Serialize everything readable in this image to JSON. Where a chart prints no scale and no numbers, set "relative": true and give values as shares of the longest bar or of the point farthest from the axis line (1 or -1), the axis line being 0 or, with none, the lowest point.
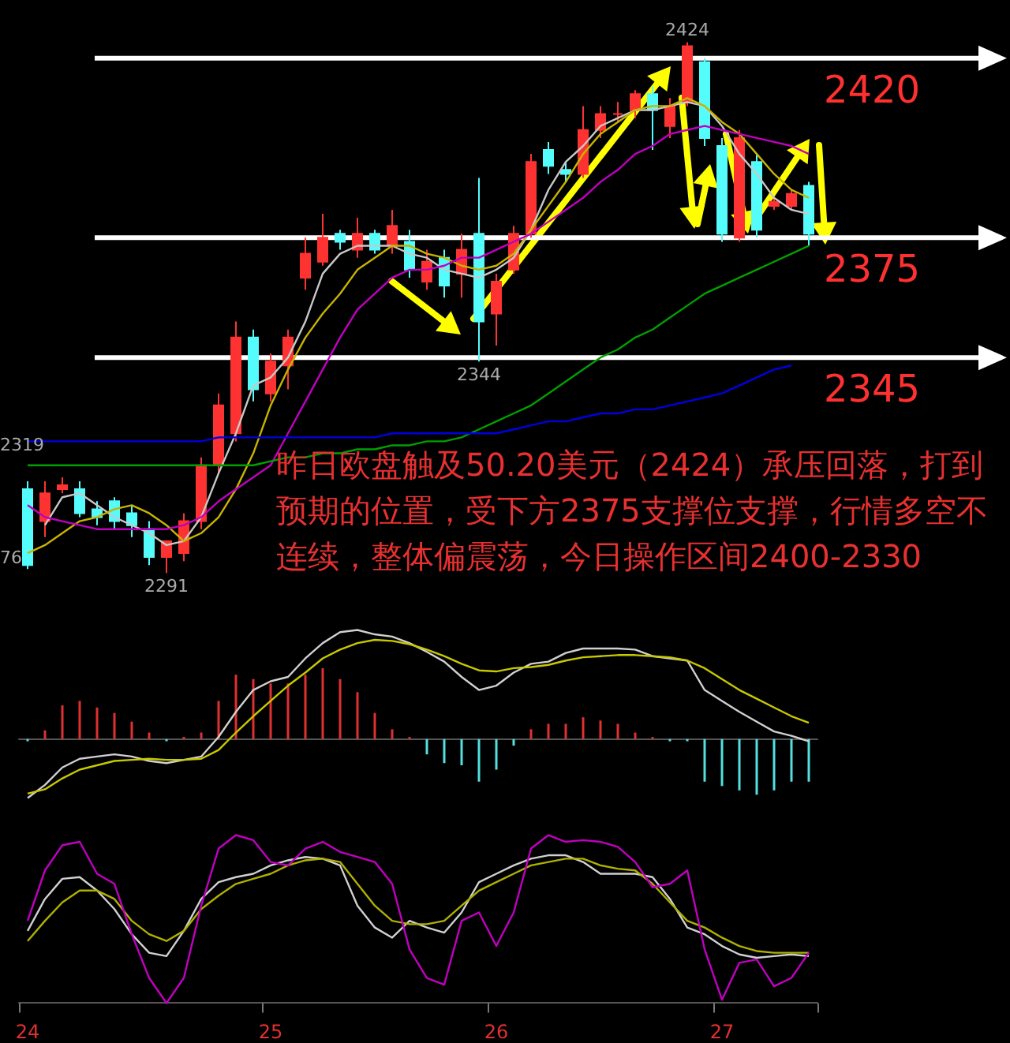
{
  "chart_data": [
    {
      "type": "candlestick",
      "tick_labels": false,
      "categories": [
        "24",
        null,
        null,
        null,
        null,
        null,
        null,
        null,
        null,
        null,
        null,
        null,
        null,
        null,
        "25",
        null,
        null,
        null,
        null,
        null,
        null,
        null,
        null,
        null,
        null,
        null,
        null,
        "26",
        null,
        null,
        null,
        null,
        null,
        null,
        null,
        null,
        null,
        null,
        null,
        null,
        "27",
        null,
        null,
        null,
        null,
        null
      ],
      "ohlc": [
        [
          2312,
          2314,
          2292,
          2293
        ],
        [
          2304,
          2314,
          2300,
          2311
        ],
        [
          2312,
          2315,
          2311,
          2313
        ],
        [
          2312,
          2314,
          2305,
          2306
        ],
        [
          2307,
          2309,
          2303,
          2305
        ],
        [
          2309,
          2310,
          2302,
          2304
        ],
        [
          2306,
          2308,
          2300,
          2303
        ],
        [
          2302,
          2304,
          2293,
          2295
        ],
        [
          2295,
          2299,
          2291,
          2299
        ],
        [
          2296,
          2306,
          2294,
          2304
        ],
        [
          2304,
          2320,
          2302,
          2318
        ],
        [
          2318,
          2336,
          2316,
          2333
        ],
        [
          2326,
          2354,
          2324,
          2350
        ],
        [
          2350,
          2352,
          2334,
          2337
        ],
        [
          2336,
          2346,
          2334,
          2344
        ],
        [
          2343,
          2352,
          2337,
          2350
        ],
        [
          2365,
          2375,
          2362,
          2371
        ],
        [
          2369,
          2381,
          2368,
          2375
        ],
        [
          2376,
          2377,
          2372,
          2374
        ],
        [
          2372,
          2380,
          2370,
          2376
        ],
        [
          2376,
          2377,
          2371,
          2372
        ],
        [
          2373,
          2382,
          2371,
          2378
        ],
        [
          2374,
          2377,
          2365,
          2367
        ],
        [
          2364,
          2372,
          2362,
          2369
        ],
        [
          2370,
          2372,
          2360,
          2363
        ],
        [
          2366,
          2376,
          2360,
          2372
        ],
        [
          2376,
          2390,
          2344,
          2354
        ],
        [
          2356,
          2366,
          2348,
          2364
        ],
        [
          2367,
          2378,
          2366,
          2376
        ],
        [
          2376,
          2396,
          2375,
          2394
        ],
        [
          2397,
          2399,
          2391,
          2393
        ],
        [
          2392,
          2394,
          2389,
          2391
        ],
        [
          2391,
          2408,
          2390,
          2402
        ],
        [
          2402,
          2408,
          2400,
          2406
        ],
        [
          2406,
          2409,
          2404,
          2406
        ],
        [
          2407,
          2412,
          2405,
          2411
        ],
        [
          2411,
          2413,
          2397,
          2407
        ],
        [
          2403,
          2410,
          2400,
          2408
        ],
        [
          2409,
          2424,
          2408,
          2423
        ],
        [
          2419,
          2420,
          2398,
          2400
        ],
        [
          2398,
          2400,
          2374,
          2376
        ],
        [
          2375,
          2402,
          2374,
          2400
        ],
        [
          2394,
          2396,
          2375,
          2377
        ],
        [
          2383,
          2385,
          2382,
          2384
        ],
        [
          2383,
          2387,
          2382,
          2386
        ],
        [
          2388,
          2389,
          2373,
          2376
        ]
      ],
      "colors": [
        "#54fcfc",
        "#ff3232",
        "#ff3232",
        "#54fcfc",
        "#54fcfc",
        "#54fcfc",
        "#54fcfc",
        "#54fcfc",
        "#ff3232",
        "#ff3232",
        "#ff3232",
        "#ff3232",
        "#ff3232",
        "#54fcfc",
        "#ff3232",
        "#ff3232",
        "#ff3232",
        "#ff3232",
        "#54fcfc",
        "#ff3232",
        "#54fcfc",
        "#ff3232",
        "#54fcfc",
        "#ff3232",
        "#54fcfc",
        "#ff3232",
        "#54fcfc",
        "#ff3232",
        "#ff3232",
        "#ff3232",
        "#54fcfc",
        "#54fcfc",
        "#ff3232",
        "#ff3232",
        "#ff3232",
        "#ff3232",
        "#54fcfc",
        "#ff3232",
        "#ff3232",
        "#54fcfc",
        "#54fcfc",
        "#ff3232",
        "#54fcfc",
        "#ff3232",
        "#ff3232",
        "#54fcfc"
      ],
      "series": [
        {
          "type": "line",
          "color": "#c8c8c8",
          "values": [
            null,
            2303,
            2310,
            2311,
            2308,
            2305,
            2303,
            2301,
            2298,
            2299,
            2305,
            2316,
            2326,
            2338,
            2340,
            2345,
            2354,
            2366,
            2371,
            2373,
            2373,
            2373,
            2371,
            2370,
            2367,
            2366,
            2365,
            2367,
            2370,
            2377,
            2387,
            2394,
            2398,
            2403,
            2405,
            2407,
            2407,
            2408,
            2409,
            2408,
            2403,
            2396,
            2391,
            2385,
            2382,
            2381
          ]
        },
        {
          "type": "line",
          "color": "#c8b400",
          "values": [
            2296,
            2298,
            2301,
            2304,
            2305,
            2307,
            2308,
            2306,
            2303,
            2299,
            2301,
            2305,
            2312,
            2321,
            2333,
            2342,
            2350,
            2356,
            2361,
            2367,
            2370,
            2373,
            2373,
            2371,
            2370,
            2368,
            2367,
            2368,
            2371,
            2377,
            2383,
            2389,
            2396,
            2401,
            2404,
            2407,
            2408,
            2408,
            2410,
            2408,
            2404,
            2401,
            2396,
            2391,
            2387,
            2385
          ]
        },
        {
          "type": "line",
          "color": "#c000c0",
          "values": [
            2308,
            2305,
            2304,
            2303,
            2302,
            2302,
            2302,
            2302,
            2302,
            2303,
            2305,
            2309,
            2312,
            2315,
            2318,
            2326,
            2334,
            2342,
            2350,
            2357,
            2361,
            2365,
            2367,
            2367,
            2368,
            2370,
            2370,
            2372,
            2374,
            2376,
            2379,
            2382,
            2385,
            2389,
            2392,
            2396,
            2398,
            2401,
            2402,
            2403,
            2402,
            2401,
            2400,
            2399,
            2398,
            2396
          ]
        },
        {
          "type": "line",
          "color": "#00a000",
          "values": [
            2318,
            2318,
            2318,
            2318,
            2318,
            2318,
            2318,
            2318,
            2318,
            2318,
            2318,
            2318,
            2318,
            2318,
            2319,
            2320,
            2320,
            2321,
            2321,
            2322,
            2322,
            2323,
            2323,
            2324,
            2324,
            2325,
            2327,
            2329,
            2331,
            2333,
            2336,
            2339,
            2342,
            2345,
            2347,
            2350,
            2352,
            2355,
            2358,
            2361,
            2363,
            2365,
            2367,
            2369,
            2371,
            2373
          ]
        },
        {
          "type": "line",
          "color": "#0000e0",
          "values": [
            2324,
            2324,
            2324,
            2324,
            2324,
            2324,
            2324,
            2324,
            2324,
            2324,
            2324,
            2325,
            2325,
            2325,
            2325,
            2325,
            2325,
            2325,
            2325,
            2325,
            2325,
            2326,
            2326,
            2326,
            2326,
            2326,
            2326,
            2326,
            2327,
            2328,
            2329,
            2329,
            2330,
            2331,
            2331,
            2332,
            2332,
            2333,
            2334,
            2335,
            2336,
            2338,
            2340,
            2342,
            2343,
            null
          ]
        }
      ],
      "ref_lines": [
        {
          "axis": "y",
          "value": 2420,
          "label": "2420",
          "color": "#ffffff"
        },
        {
          "axis": "y",
          "value": 2375,
          "label": "2375",
          "color": "#ffffff"
        },
        {
          "axis": "y",
          "value": 2345,
          "label": "2345",
          "color": "#ffffff"
        }
      ],
      "annotations": [
        {
          "text": "2424",
          "y": 2424
        },
        {
          "text": "2344",
          "y": 2344
        },
        {
          "text": "2291",
          "y": 2291
        },
        {
          "text": "2319",
          "y": 2319
        },
        "76",
        "昨日欧盘触及50.20美元（2424）承压回落，打到预期的位置，受下方2375支撑位支撑，行情多空不连续，整体偏震荡，今日操作区间2400-2330"
      ]
    },
    {
      "type": "bar",
      "relative": true,
      "tick_labels": false,
      "categories": [
        "24",
        null,
        null,
        null,
        null,
        null,
        null,
        null,
        null,
        null,
        null,
        null,
        null,
        null,
        "25",
        null,
        null,
        null,
        null,
        null,
        null,
        null,
        null,
        null,
        null,
        null,
        null,
        "26",
        null,
        null,
        null,
        null,
        null,
        null,
        null,
        null,
        null,
        null,
        null,
        null,
        "27",
        null,
        null,
        null,
        null,
        null
      ],
      "series": [
        {
          "type": "bar",
          "colors": [
            "#54e0e0",
            "#e03030",
            "#e03030",
            "#e03030",
            "#e03030",
            "#e03030",
            "#e03030",
            "#e03030",
            "#54e0e0",
            "#e03030",
            "#e03030",
            "#e03030",
            "#e03030",
            "#e03030",
            "#e03030",
            "#e03030",
            "#e03030",
            "#e03030",
            "#e03030",
            "#e03030",
            "#e03030",
            "#e03030",
            "#e03030",
            "#54e0e0",
            "#54e0e0",
            "#54e0e0",
            "#54e0e0",
            "#54e0e0",
            "#54e0e0",
            "#e03030",
            "#e03030",
            "#e03030",
            "#e03030",
            "#e03030",
            "#e03030",
            "#e03030",
            "#e03030",
            "#54e0e0",
            "#54e0e0",
            "#54e0e0",
            "#54e0e0",
            "#54e0e0",
            "#54e0e0",
            "#54e0e0",
            "#54e0e0",
            "#54e0e0"
          ],
          "values": [
            -0.02,
            0.08,
            0.31,
            0.35,
            0.29,
            0.24,
            0.16,
            0.06,
            -0.02,
            0.02,
            0.06,
            0.35,
            0.59,
            0.55,
            0.51,
            0.51,
            0.59,
            0.65,
            0.55,
            0.43,
            0.24,
            0.09,
            0.02,
            -0.14,
            -0.22,
            -0.24,
            -0.39,
            -0.28,
            -0.06,
            0.09,
            0.14,
            0.14,
            0.2,
            0.17,
            0.14,
            0.06,
            0.02,
            -0.02,
            -0.02,
            -0.39,
            -0.43,
            -0.47,
            -0.51,
            -0.47,
            -0.39,
            -0.39
          ]
        },
        {
          "type": "line",
          "color": "#d0d0d0",
          "values": [
            -0.54,
            -0.42,
            -0.26,
            -0.18,
            -0.16,
            -0.14,
            -0.16,
            -0.2,
            -0.22,
            -0.19,
            -0.16,
            0.02,
            0.25,
            0.45,
            0.53,
            0.57,
            0.74,
            0.88,
            0.98,
            1,
            0.96,
            0.94,
            0.88,
            0.8,
            0.71,
            0.57,
            0.45,
            0.49,
            0.61,
            0.69,
            0.71,
            0.79,
            0.83,
            0.83,
            0.83,
            0.82,
            0.76,
            0.74,
            0.72,
            0.45,
            0.35,
            0.25,
            0.16,
            0.07,
            0.03,
            -0.02
          ]
        },
        {
          "type": "line",
          "color": "#c8c800",
          "values": [
            -0.5,
            -0.46,
            -0.36,
            -0.28,
            -0.24,
            -0.2,
            -0.19,
            -0.18,
            -0.19,
            -0.19,
            -0.18,
            -0.1,
            0.06,
            0.21,
            0.35,
            0.49,
            0.61,
            0.74,
            0.82,
            0.88,
            0.91,
            0.9,
            0.87,
            0.82,
            0.76,
            0.69,
            0.63,
            0.62,
            0.65,
            0.66,
            0.68,
            0.72,
            0.75,
            0.76,
            0.77,
            0.77,
            0.76,
            0.75,
            0.72,
            0.65,
            0.55,
            0.45,
            0.37,
            0.29,
            0.21,
            0.15
          ]
        }
      ]
    },
    {
      "type": "line",
      "relative": true,
      "tick_labels": "x",
      "categories": [
        "24",
        null,
        null,
        null,
        null,
        null,
        null,
        null,
        null,
        null,
        null,
        null,
        null,
        null,
        "25",
        null,
        null,
        null,
        null,
        null,
        null,
        null,
        null,
        null,
        null,
        null,
        null,
        "26",
        null,
        null,
        null,
        null,
        null,
        null,
        null,
        null,
        null,
        null,
        null,
        null,
        "27",
        null,
        null,
        null,
        null,
        null
      ],
      "series": [
        {
          "type": "line",
          "color": "#d0d0d0",
          "values": [
            0.43,
            0.62,
            0.74,
            0.75,
            0.67,
            0.56,
            0.41,
            0.3,
            0.28,
            0.43,
            0.62,
            0.72,
            0.75,
            0.77,
            0.82,
            0.85,
            0.87,
            0.86,
            0.82,
            0.58,
            0.45,
            0.39,
            0.49,
            0.45,
            0.42,
            0.54,
            0.72,
            0.77,
            0.82,
            0.86,
            0.88,
            0.88,
            0.84,
            0.77,
            0.77,
            0.77,
            0.75,
            0.62,
            0.45,
            0.41,
            0.34,
            0.29,
            0.27,
            0.28,
            0.29,
            0.28
          ]
        },
        {
          "type": "line",
          "color": "#b0b000",
          "values": [
            0.37,
            0.49,
            0.6,
            0.67,
            0.67,
            0.62,
            0.49,
            0.41,
            0.37,
            0.43,
            0.56,
            0.64,
            0.71,
            0.74,
            0.77,
            0.82,
            0.85,
            0.86,
            0.84,
            0.71,
            0.58,
            0.49,
            0.47,
            0.47,
            0.49,
            0.58,
            0.67,
            0.72,
            0.77,
            0.82,
            0.84,
            0.86,
            0.86,
            0.82,
            0.8,
            0.79,
            0.71,
            0.6,
            0.49,
            0.45,
            0.39,
            0.34,
            0.31,
            0.3,
            0.3,
            0.3
          ]
        },
        {
          "type": "line",
          "color": "#c000c0",
          "values": [
            0.49,
            0.79,
            0.94,
            0.96,
            0.77,
            0.71,
            0.41,
            0.15,
            0,
            0.15,
            0.58,
            0.92,
            1,
            0.97,
            0.84,
            0.82,
            0.92,
            0.96,
            0.9,
            0.87,
            0.84,
            0.71,
            0.32,
            0.15,
            0.11,
            0.49,
            0.54,
            0.34,
            0.54,
            0.92,
            1,
            0.96,
            0.97,
            0.96,
            0.93,
            0.84,
            0.69,
            0.71,
            0.79,
            0.32,
            0.02,
            0.24,
            0.26,
            0.1,
            0.15,
            0.3
          ]
        }
      ]
    }
  ]
}
